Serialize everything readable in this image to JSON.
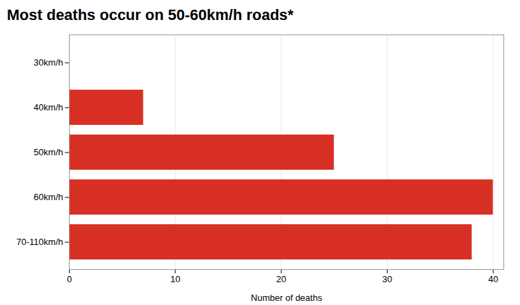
{
  "chart_data": {
    "type": "bar",
    "orientation": "horizontal",
    "title": "Most deaths occur on 50-60km/h roads*",
    "categories": [
      "30km/h",
      "40km/h",
      "50km/h",
      "60km/h",
      "70-110km/h"
    ],
    "values": [
      0,
      7,
      25,
      40,
      38
    ],
    "color": "#d93025",
    "xlabel": "Number of deaths",
    "xlim": [
      0,
      41
    ],
    "xticks": [
      0,
      10,
      20,
      30,
      40
    ],
    "grid": true
  }
}
